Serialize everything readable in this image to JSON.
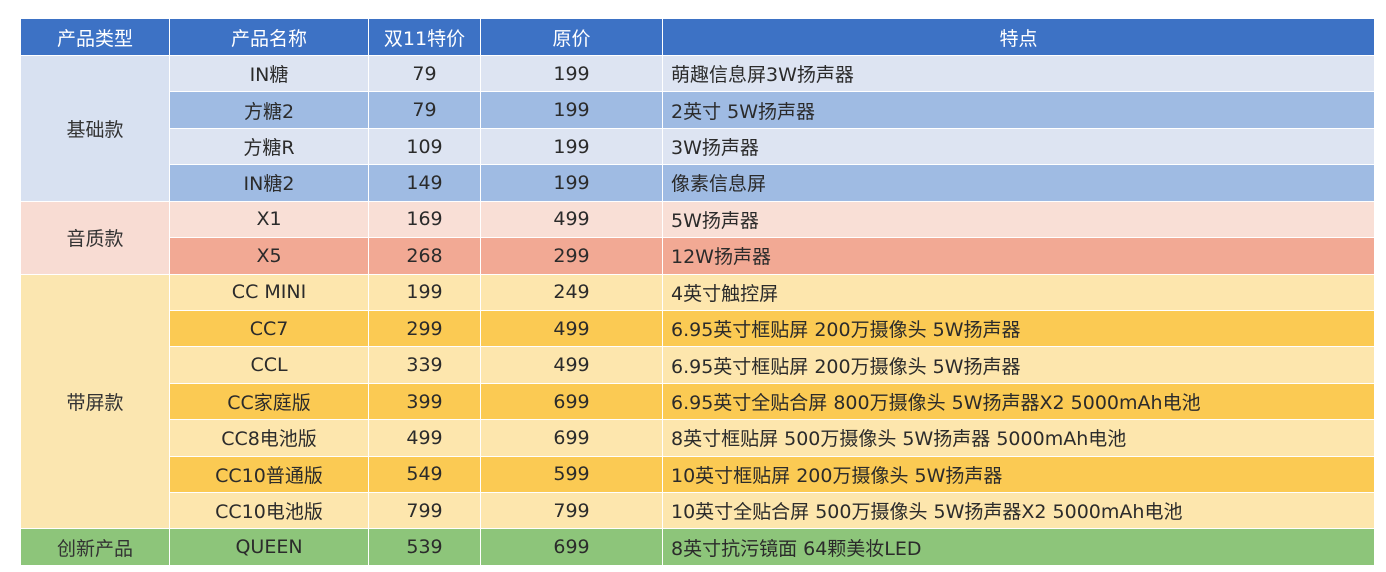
{
  "headers": [
    "产品类型",
    "产品名称",
    "双11特价",
    "原价",
    "特点"
  ],
  "groups": [
    {
      "category": "基础款",
      "theme": "basic",
      "rows": [
        {
          "name": "IN糖",
          "sale": "79",
          "orig": "199",
          "feature": "萌趣信息屏3W扬声器"
        },
        {
          "name": "方糖2",
          "sale": "79",
          "orig": "199",
          "feature": "2英寸 5W扬声器"
        },
        {
          "name": "方糖R",
          "sale": "109",
          "orig": "199",
          "feature": "3W扬声器"
        },
        {
          "name": "IN糖2",
          "sale": "149",
          "orig": "199",
          "feature": "像素信息屏"
        }
      ]
    },
    {
      "category": "音质款",
      "theme": "sound",
      "rows": [
        {
          "name": "X1",
          "sale": "169",
          "orig": "499",
          "feature": "5W扬声器"
        },
        {
          "name": "X5",
          "sale": "268",
          "orig": "299",
          "feature": "12W扬声器"
        }
      ]
    },
    {
      "category": "带屏款",
      "theme": "screen",
      "rows": [
        {
          "name": "CC MINI",
          "sale": "199",
          "orig": "249",
          "feature": "4英寸触控屏"
        },
        {
          "name": "CC7",
          "sale": "299",
          "orig": "499",
          "feature": "6.95英寸框贴屏 200万摄像头 5W扬声器"
        },
        {
          "name": "CCL",
          "sale": "339",
          "orig": "499",
          "feature": "6.95英寸框贴屏 200万摄像头 5W扬声器"
        },
        {
          "name": "CC家庭版",
          "sale": "399",
          "orig": "699",
          "feature": "6.95英寸全贴合屏 800万摄像头 5W扬声器X2 5000mAh电池"
        },
        {
          "name": "CC8电池版",
          "sale": "499",
          "orig": "699",
          "feature": "8英寸框贴屏 500万摄像头 5W扬声器  5000mAh电池"
        },
        {
          "name": "CC10普通版",
          "sale": "549",
          "orig": "599",
          "feature": "10英寸框贴屏 200万摄像头 5W扬声器"
        },
        {
          "name": "CC10电池版",
          "sale": "799",
          "orig": "799",
          "feature": "10英寸全贴合屏 500万摄像头 5W扬声器X2 5000mAh电池"
        }
      ]
    },
    {
      "category": "创新产品",
      "theme": "new",
      "rows": [
        {
          "name": "QUEEN",
          "sale": "539",
          "orig": "699",
          "feature": "8英寸抗污镜面 64颗美妆LED"
        }
      ]
    }
  ]
}
